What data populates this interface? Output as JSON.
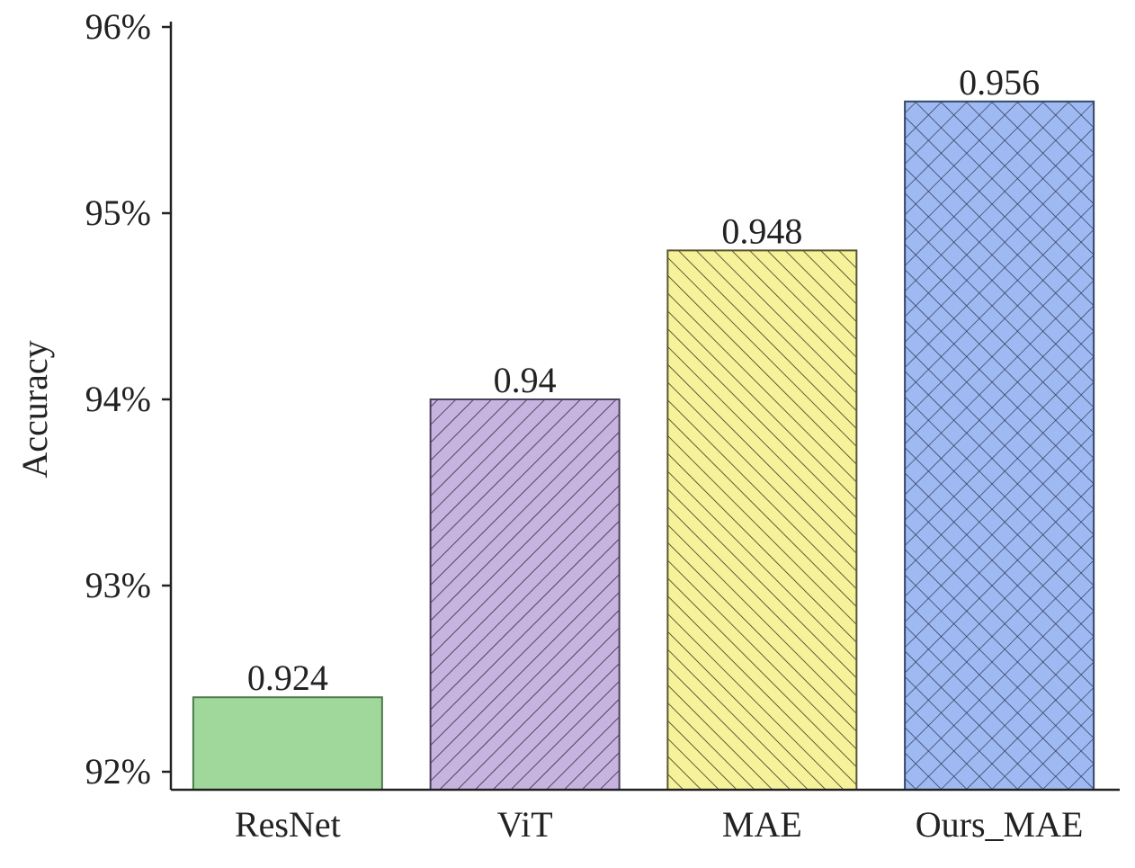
{
  "chart_data": {
    "type": "bar",
    "title": "",
    "xlabel": "",
    "ylabel": "Accuracy",
    "categories": [
      "ResNet",
      "ViT",
      "MAE",
      "Ours_MAE"
    ],
    "values": [
      0.924,
      0.94,
      0.948,
      0.956
    ],
    "data_labels": [
      "0.924",
      "0.94",
      "0.948",
      "0.956"
    ],
    "ylim": [
      0.919,
      0.96
    ],
    "yticks": [
      0.92,
      0.93,
      0.94,
      0.95,
      0.96
    ],
    "ytick_labels": [
      "92%",
      "93%",
      "94%",
      "95%",
      "96%"
    ],
    "grid": false,
    "legend": "none",
    "bar_styles": [
      {
        "fill": "#9fd89a",
        "stroke": "#4f7a4c",
        "hatch": "none"
      },
      {
        "fill": "#c7b3e0",
        "stroke": "#4a3f5c",
        "hatch": "forward-diagonal"
      },
      {
        "fill": "#f6f29a",
        "stroke": "#5a5630",
        "hatch": "back-diagonal"
      },
      {
        "fill": "#9fbaf2",
        "stroke": "#34466a",
        "hatch": "cross-diagonal"
      }
    ]
  }
}
